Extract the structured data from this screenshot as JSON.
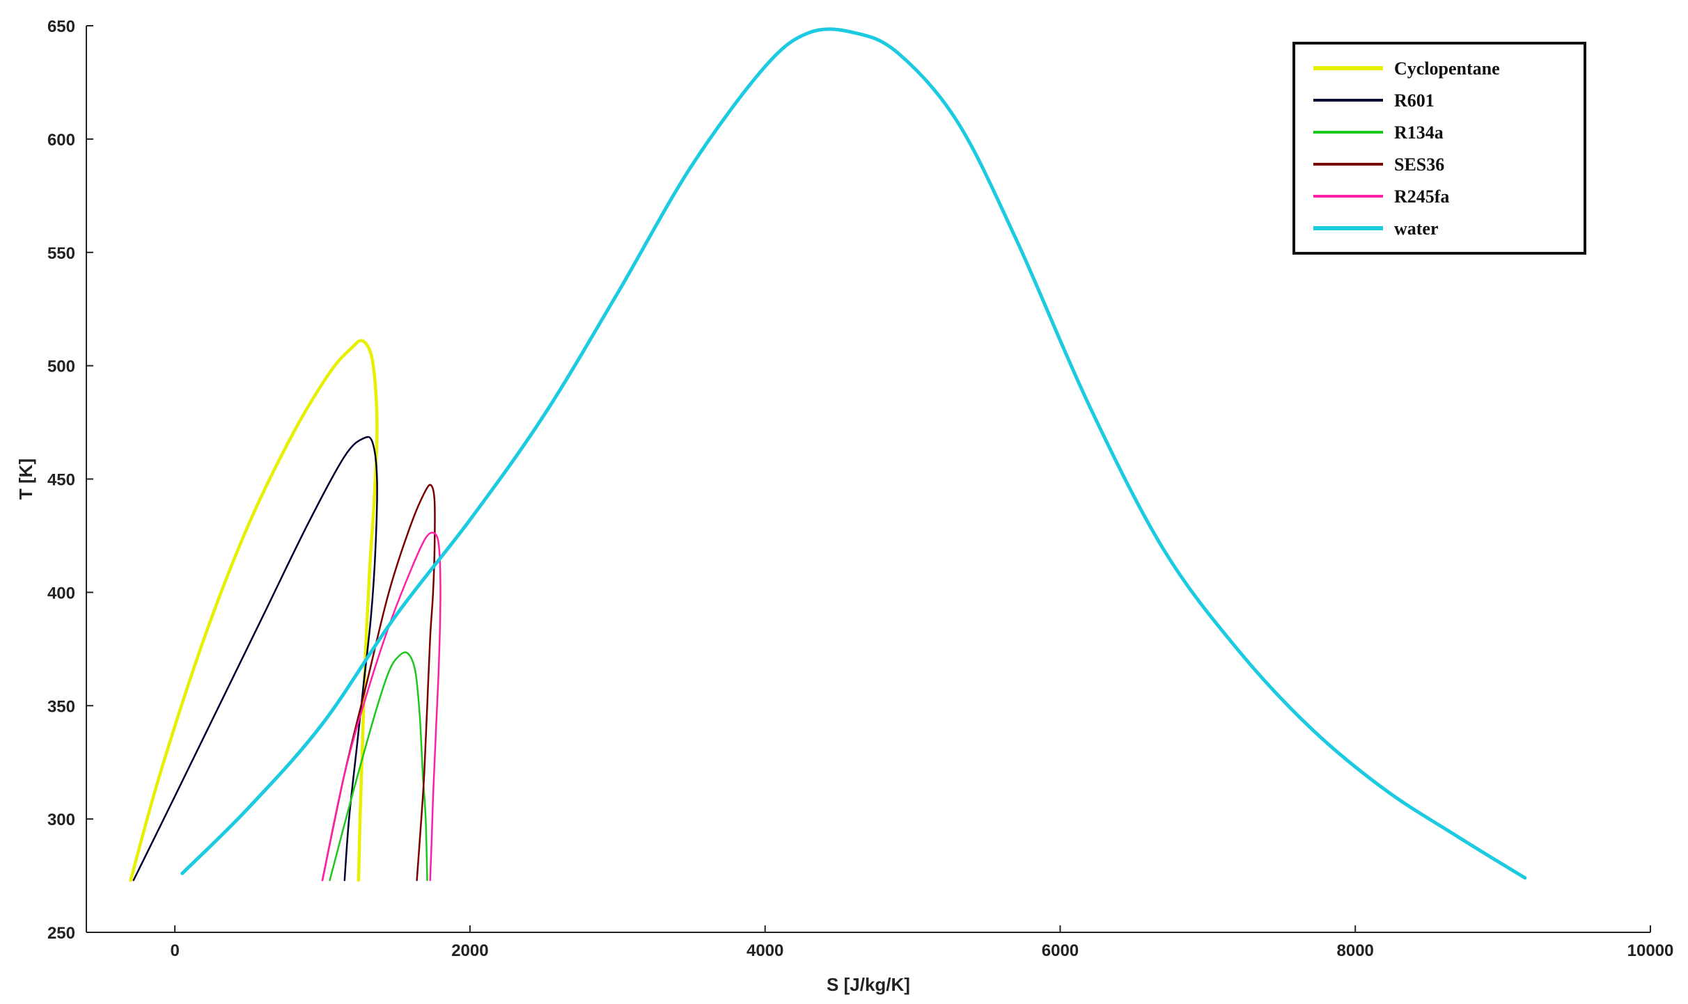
{
  "chart_data": {
    "type": "line",
    "title": "",
    "xlabel": "S [J/kg/K]",
    "ylabel": "T [K]",
    "xlim": [
      -600,
      10000
    ],
    "ylim": [
      250,
      650
    ],
    "x_ticks": [
      0,
      2000,
      4000,
      6000,
      8000,
      10000
    ],
    "y_ticks": [
      250,
      300,
      350,
      400,
      450,
      500,
      550,
      600,
      650
    ],
    "x_tick_labels": [
      "0",
      "2000",
      "4000",
      "6000",
      "8000",
      "10000"
    ],
    "y_tick_labels": [
      "250",
      "300",
      "350",
      "400",
      "450",
      "500",
      "550",
      "600",
      "650"
    ],
    "grid": false,
    "legend_position": "top-right",
    "series": [
      {
        "name": "Cyclopentane",
        "color": "#e6f000",
        "points": [
          [
            -300,
            273
          ],
          [
            -100,
            320
          ],
          [
            200,
            380
          ],
          [
            500,
            430
          ],
          [
            800,
            470
          ],
          [
            1050,
            497
          ],
          [
            1200,
            508
          ],
          [
            1270,
            511
          ],
          [
            1330,
            505
          ],
          [
            1360,
            490
          ],
          [
            1370,
            470
          ],
          [
            1350,
            440
          ],
          [
            1320,
            410
          ],
          [
            1290,
            370
          ],
          [
            1270,
            330
          ],
          [
            1255,
            300
          ],
          [
            1245,
            273
          ]
        ]
      },
      {
        "name": "R601",
        "color": "#000033",
        "points": [
          [
            -280,
            273
          ],
          [
            0,
            310
          ],
          [
            300,
            350
          ],
          [
            600,
            390
          ],
          [
            900,
            430
          ],
          [
            1150,
            460
          ],
          [
            1280,
            468
          ],
          [
            1340,
            466
          ],
          [
            1370,
            450
          ],
          [
            1360,
            420
          ],
          [
            1330,
            390
          ],
          [
            1280,
            360
          ],
          [
            1230,
            330
          ],
          [
            1180,
            300
          ],
          [
            1150,
            273
          ]
        ]
      },
      {
        "name": "R134a",
        "color": "#1cc81c",
        "points": [
          [
            1050,
            273
          ],
          [
            1200,
            310
          ],
          [
            1350,
            345
          ],
          [
            1450,
            365
          ],
          [
            1520,
            372
          ],
          [
            1580,
            373
          ],
          [
            1630,
            365
          ],
          [
            1660,
            345
          ],
          [
            1680,
            320
          ],
          [
            1700,
            300
          ],
          [
            1710,
            273
          ]
        ]
      },
      {
        "name": "SES36",
        "color": "#7a0000",
        "points": [
          [
            1000,
            273
          ],
          [
            1150,
            320
          ],
          [
            1300,
            360
          ],
          [
            1450,
            400
          ],
          [
            1600,
            430
          ],
          [
            1700,
            445
          ],
          [
            1740,
            447
          ],
          [
            1760,
            440
          ],
          [
            1760,
            420
          ],
          [
            1750,
            400
          ],
          [
            1730,
            380
          ],
          [
            1710,
            350
          ],
          [
            1690,
            320
          ],
          [
            1670,
            300
          ],
          [
            1640,
            273
          ]
        ]
      },
      {
        "name": "R245fa",
        "color": "#ff1fa8",
        "points": [
          [
            1000,
            273
          ],
          [
            1150,
            320
          ],
          [
            1300,
            355
          ],
          [
            1450,
            385
          ],
          [
            1600,
            410
          ],
          [
            1700,
            424
          ],
          [
            1760,
            426
          ],
          [
            1790,
            420
          ],
          [
            1800,
            400
          ],
          [
            1790,
            370
          ],
          [
            1770,
            340
          ],
          [
            1750,
            310
          ],
          [
            1740,
            290
          ],
          [
            1730,
            273
          ]
        ]
      },
      {
        "name": "water",
        "color": "#1ccbe0",
        "points": [
          [
            50,
            276
          ],
          [
            500,
            305
          ],
          [
            1000,
            342
          ],
          [
            1500,
            390
          ],
          [
            2000,
            432
          ],
          [
            2500,
            478
          ],
          [
            3000,
            532
          ],
          [
            3500,
            588
          ],
          [
            4000,
            632
          ],
          [
            4300,
            647
          ],
          [
            4600,
            647
          ],
          [
            4900,
            638
          ],
          [
            5300,
            608
          ],
          [
            5700,
            556
          ],
          [
            6200,
            482
          ],
          [
            6700,
            419
          ],
          [
            7200,
            375
          ],
          [
            7700,
            340
          ],
          [
            8200,
            313
          ],
          [
            8700,
            292
          ],
          [
            9150,
            274
          ]
        ]
      }
    ]
  }
}
